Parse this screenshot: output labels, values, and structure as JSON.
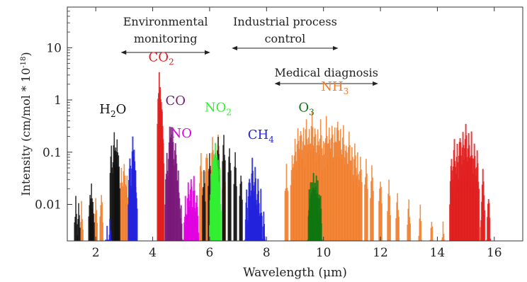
{
  "chart_data": {
    "type": "bar",
    "xlabel": "Wavelength (μm)",
    "ylabel": "Intensity (cm/mol * 10",
    "ylabel_exp": "-18",
    "ylabel_close": ")",
    "xlim": [
      1,
      17
    ],
    "ylim": [
      0.002,
      60
    ],
    "yscale": "log",
    "x_ticks": [
      2,
      4,
      6,
      8,
      10,
      12,
      14,
      16
    ],
    "y_ticks": [
      {
        "value": 10,
        "label": "10"
      },
      {
        "value": 1,
        "label": "1"
      },
      {
        "value": 0.1,
        "label": "0.1"
      },
      {
        "value": 0.01,
        "label": "0.01"
      }
    ],
    "applications": [
      {
        "line1": "Environmental",
        "line2": "monitoring",
        "x_start": 2.9,
        "x_end": 6.0
      },
      {
        "line1": "Industrial process",
        "line2": "control",
        "x_start": 6.8,
        "x_end": 10.5
      },
      {
        "line1": "Medical diagnosis",
        "line2": "",
        "x_start": 8.3,
        "x_end": 11.9
      }
    ],
    "series": [
      {
        "label": "NH",
        "sub": "3",
        "color": "#f07c2a",
        "label_x": 10.4,
        "label_y": 1.5,
        "peaks": [
          [
            1.5,
            0.012
          ],
          [
            2.0,
            0.015
          ],
          [
            2.2,
            0.02
          ],
          [
            2.9,
            0.05
          ],
          [
            3.0,
            0.08
          ],
          [
            3.1,
            0.04
          ],
          [
            5.7,
            0.1
          ],
          [
            5.9,
            0.15
          ],
          [
            6.1,
            0.2
          ],
          [
            6.3,
            0.25
          ],
          [
            6.5,
            0.1
          ],
          [
            8.7,
            0.06
          ],
          [
            8.9,
            0.12
          ],
          [
            9.0,
            0.2
          ],
          [
            9.1,
            0.3
          ],
          [
            9.2,
            0.4
          ],
          [
            9.3,
            0.3
          ],
          [
            9.4,
            0.5
          ],
          [
            9.5,
            0.35
          ],
          [
            9.6,
            0.6
          ],
          [
            9.7,
            0.4
          ],
          [
            9.8,
            0.3
          ],
          [
            9.9,
            0.45
          ],
          [
            10.0,
            0.25
          ],
          [
            10.1,
            0.5
          ],
          [
            10.2,
            0.35
          ],
          [
            10.3,
            0.4
          ],
          [
            10.4,
            0.3
          ],
          [
            10.5,
            0.55
          ],
          [
            10.6,
            0.3
          ],
          [
            10.7,
            0.35
          ],
          [
            10.8,
            0.2
          ],
          [
            10.9,
            0.25
          ],
          [
            11.0,
            0.15
          ],
          [
            11.1,
            0.18
          ],
          [
            11.2,
            0.1
          ],
          [
            11.3,
            0.12
          ],
          [
            11.5,
            0.08
          ],
          [
            11.7,
            0.06
          ],
          [
            12.0,
            0.04
          ],
          [
            12.3,
            0.03
          ],
          [
            12.6,
            0.02
          ],
          [
            13.0,
            0.015
          ],
          [
            13.4,
            0.01
          ],
          [
            13.8,
            0.007
          ],
          [
            14.2,
            0.005
          ],
          [
            15.5,
            0.004
          ]
        ],
        "spacing": 0.05,
        "bar_width": 1.6
      },
      {
        "label": "H",
        "sub": "2",
        "label2": "O",
        "color": "#111111",
        "label_x": 2.6,
        "label_y": 0.55,
        "peaks": [
          [
            1.3,
            0.015
          ],
          [
            1.4,
            0.012
          ],
          [
            1.8,
            0.02
          ],
          [
            1.85,
            0.025
          ],
          [
            1.9,
            0.015
          ],
          [
            2.55,
            0.15
          ],
          [
            2.65,
            0.25
          ],
          [
            2.7,
            0.2
          ],
          [
            2.75,
            0.18
          ],
          [
            2.8,
            0.1
          ],
          [
            5.0,
            0.005
          ],
          [
            5.2,
            0.006
          ],
          [
            5.5,
            0.01
          ],
          [
            5.8,
            0.05
          ],
          [
            6.0,
            0.1
          ],
          [
            6.2,
            0.15
          ],
          [
            6.3,
            0.2
          ],
          [
            6.5,
            0.25
          ],
          [
            6.7,
            0.15
          ],
          [
            6.9,
            0.1
          ],
          [
            7.1,
            0.05
          ]
        ],
        "spacing": 0.045,
        "bar_width": 1.6
      },
      {
        "label": "NO",
        "sub": "",
        "color": "#e000e0",
        "label_x": 5.0,
        "label_y": 0.19,
        "peaks": [
          [
            5.15,
            0.015
          ],
          [
            5.25,
            0.03
          ],
          [
            5.35,
            0.04
          ],
          [
            5.45,
            0.035
          ],
          [
            5.55,
            0.02
          ]
        ],
        "spacing": 0.04,
        "bar_width": 2
      },
      {
        "label": "CO",
        "sub": "",
        "color": "#7a1a7a",
        "label_x": 4.8,
        "label_y": 0.8,
        "peaks": [
          [
            4.5,
            0.1
          ],
          [
            4.6,
            0.35
          ],
          [
            4.65,
            0.4
          ],
          [
            4.7,
            0.3
          ],
          [
            4.8,
            0.2
          ],
          [
            4.9,
            0.05
          ],
          [
            5.0,
            0.01
          ]
        ],
        "spacing": 0.04,
        "bar_width": 2
      },
      {
        "label": "CO",
        "sub": "2",
        "color": "#e02020",
        "label_x": 4.3,
        "label_y": 5.5,
        "peaks": [
          [
            4.23,
            3.5
          ],
          [
            4.26,
            2.0
          ],
          [
            4.3,
            1.2
          ],
          [
            4.33,
            0.6
          ],
          [
            14.5,
            0.1
          ],
          [
            14.6,
            0.2
          ],
          [
            14.7,
            0.15
          ],
          [
            14.8,
            0.3
          ],
          [
            14.9,
            0.25
          ],
          [
            15.0,
            0.4
          ],
          [
            15.1,
            0.3
          ],
          [
            15.2,
            0.25
          ],
          [
            15.3,
            0.2
          ],
          [
            15.4,
            0.12
          ],
          [
            15.6,
            0.05
          ],
          [
            15.8,
            0.02
          ]
        ],
        "spacing": 0.04,
        "bar_width": 2
      },
      {
        "label": "NO",
        "sub": "2",
        "color": "#33ee33",
        "label_x": 6.3,
        "label_y": 0.6,
        "peaks": [
          [
            6.05,
            0.04
          ],
          [
            6.1,
            0.08
          ],
          [
            6.15,
            0.12
          ],
          [
            6.2,
            0.15
          ],
          [
            6.25,
            0.12
          ],
          [
            6.3,
            0.08
          ],
          [
            6.35,
            0.05
          ]
        ],
        "spacing": 0.03,
        "bar_width": 2
      },
      {
        "label": "CH",
        "sub": "4",
        "color": "#2222dd",
        "label_x": 7.8,
        "label_y": 0.18,
        "peaks": [
          [
            2.4,
            0.004
          ],
          [
            2.5,
            0.006
          ],
          [
            3.2,
            0.1
          ],
          [
            3.3,
            0.2
          ],
          [
            3.35,
            0.15
          ],
          [
            3.4,
            0.05
          ],
          [
            7.3,
            0.02
          ],
          [
            7.4,
            0.05
          ],
          [
            7.5,
            0.08
          ],
          [
            7.6,
            0.06
          ],
          [
            7.7,
            0.04
          ],
          [
            7.8,
            0.02
          ],
          [
            7.9,
            0.01
          ]
        ],
        "spacing": 0.035,
        "bar_width": 2
      },
      {
        "label": "O",
        "sub": "3",
        "color": "#117711",
        "label_x": 9.4,
        "label_y": 0.6,
        "peaks": [
          [
            9.5,
            0.02
          ],
          [
            9.55,
            0.03
          ],
          [
            9.6,
            0.035
          ],
          [
            9.65,
            0.04
          ],
          [
            9.7,
            0.035
          ],
          [
            9.75,
            0.04
          ],
          [
            9.8,
            0.03
          ],
          [
            9.85,
            0.025
          ],
          [
            9.9,
            0.015
          ]
        ],
        "spacing": 0.025,
        "bar_width": 2
      }
    ]
  }
}
